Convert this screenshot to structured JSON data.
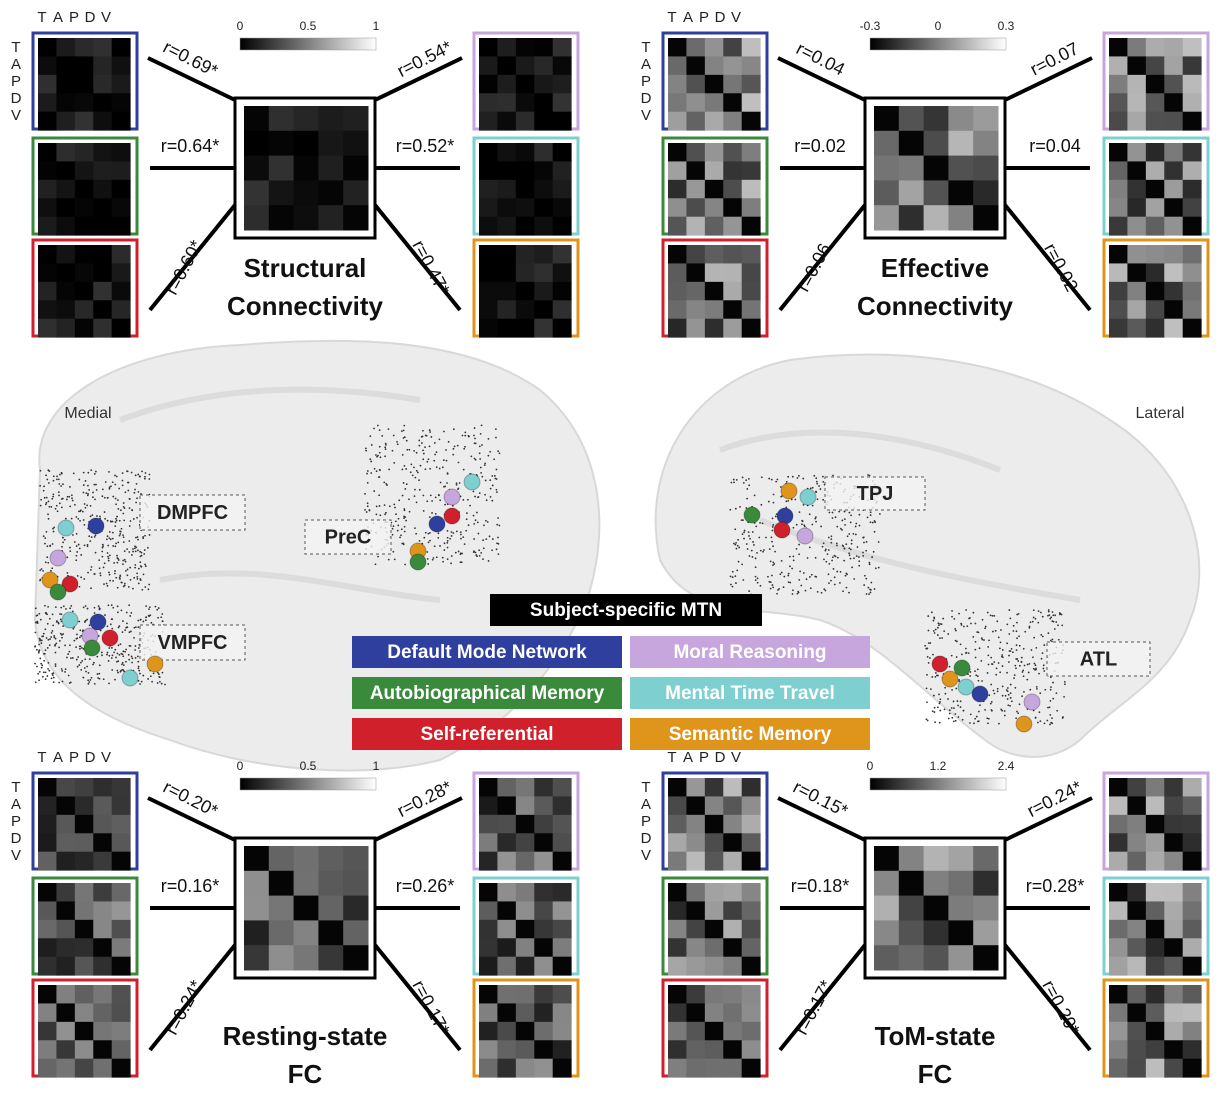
{
  "panels": [
    {
      "title": [
        "Structural",
        "Connectivity"
      ],
      "colorbar_ticks": [
        "0",
        "0.5",
        "1"
      ],
      "axis_letters": [
        "T",
        "A",
        "P",
        "D",
        "V"
      ],
      "correlations": {
        "left": [
          "r=0.69*",
          "r=0.64*",
          "r=0.60*"
        ],
        "right": [
          "r=0.54*",
          "r=0.52*",
          "r=0.47*"
        ]
      }
    },
    {
      "title": [
        "Effective",
        "Connectivity"
      ],
      "colorbar_ticks": [
        "-0.3",
        "0",
        "0.3"
      ],
      "axis_letters": [
        "T",
        "A",
        "P",
        "D",
        "V"
      ],
      "correlations": {
        "left": [
          "r=0.04",
          "r=0.02",
          "r=0.06"
        ],
        "right": [
          "r=0.07",
          "r=0.04",
          "r=0.02"
        ]
      }
    },
    {
      "title": [
        "Resting-state",
        "FC"
      ],
      "colorbar_ticks": [
        "0",
        "0.5",
        "1"
      ],
      "axis_letters": [
        "T",
        "A",
        "P",
        "D",
        "V"
      ],
      "correlations": {
        "left": [
          "r=0.20*",
          "r=0.16*",
          "r=0.24*"
        ],
        "right": [
          "r=0.28*",
          "r=0.26*",
          "r=0.17*"
        ]
      }
    },
    {
      "title": [
        "ToM-state",
        "FC"
      ],
      "colorbar_ticks": [
        "0",
        "1.2",
        "2.4"
      ],
      "axis_letters": [
        "T",
        "A",
        "P",
        "D",
        "V"
      ],
      "correlations": {
        "left": [
          "r=0.15*",
          "r=0.18*",
          "r=0.17*"
        ],
        "right": [
          "r=0.24*",
          "r=0.28*",
          "r=0.20*"
        ]
      }
    }
  ],
  "brain": {
    "medial_label": "Medial",
    "lateral_label": "Lateral",
    "regions": [
      "DMPFC",
      "PreC",
      "VMPFC",
      "TPJ",
      "ATL"
    ]
  },
  "legend": {
    "header": "Subject-specific MTN",
    "items": [
      {
        "name": "Default Mode Network",
        "color": "#2f3f9e"
      },
      {
        "name": "Moral Reasoning",
        "color": "#c7a6de"
      },
      {
        "name": "Autobiographical Memory",
        "color": "#3a8a3c"
      },
      {
        "name": "Mental Time Travel",
        "color": "#7ecfcf"
      },
      {
        "name": "Self-referential",
        "color": "#d0202c"
      },
      {
        "name": "Semantic Memory",
        "color": "#df941c"
      }
    ]
  }
}
